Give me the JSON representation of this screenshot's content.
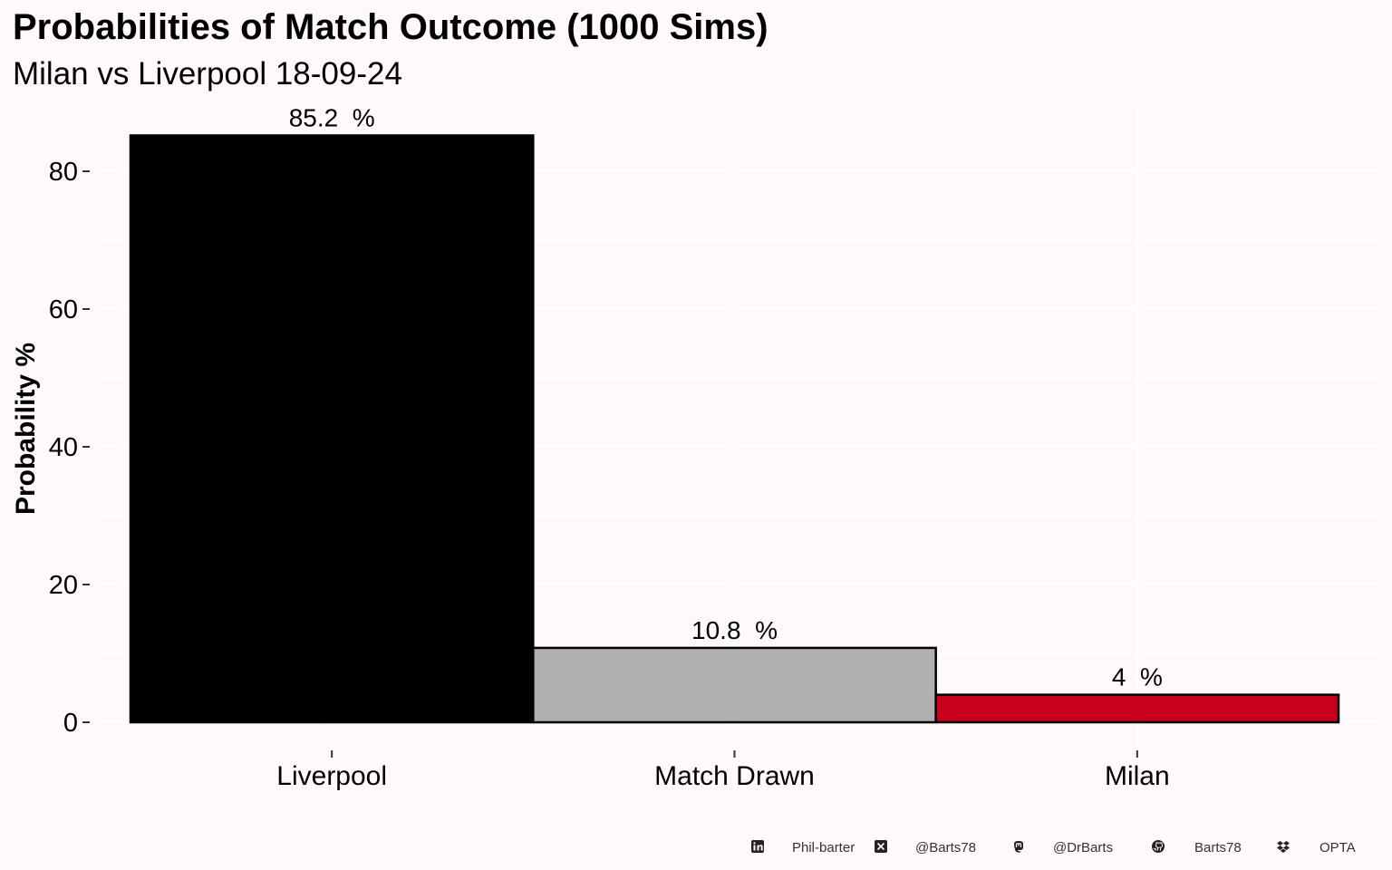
{
  "chart_data": {
    "type": "bar",
    "title": "Probabilities of Match Outcome (1000 Sims)",
    "subtitle": "Milan vs Liverpool 18-09-24",
    "xlabel": "",
    "ylabel": "Probability %",
    "categories": [
      "Liverpool",
      "Match Drawn",
      "Milan"
    ],
    "values": [
      85.2,
      10.8,
      4
    ],
    "value_labels": [
      "85.2  %",
      "10.8  %",
      "4  %"
    ],
    "colors": [
      "#000000",
      "#b0b0b0",
      "#c8001e"
    ],
    "yticks": [
      "0",
      "20",
      "40",
      "60",
      "80"
    ],
    "ylim": [
      0,
      89
    ],
    "grid": true,
    "legend": "none"
  },
  "footer": {
    "items": [
      {
        "icon": "linkedin-icon",
        "label": "Phil-barter"
      },
      {
        "icon": "x-twitter-icon",
        "label": "@Barts78"
      },
      {
        "icon": "mastodon-icon",
        "label": "@DrBarts"
      },
      {
        "icon": "github-icon",
        "label": "Barts78"
      },
      {
        "icon": "dropbox-icon",
        "label": "OPTA"
      }
    ]
  }
}
